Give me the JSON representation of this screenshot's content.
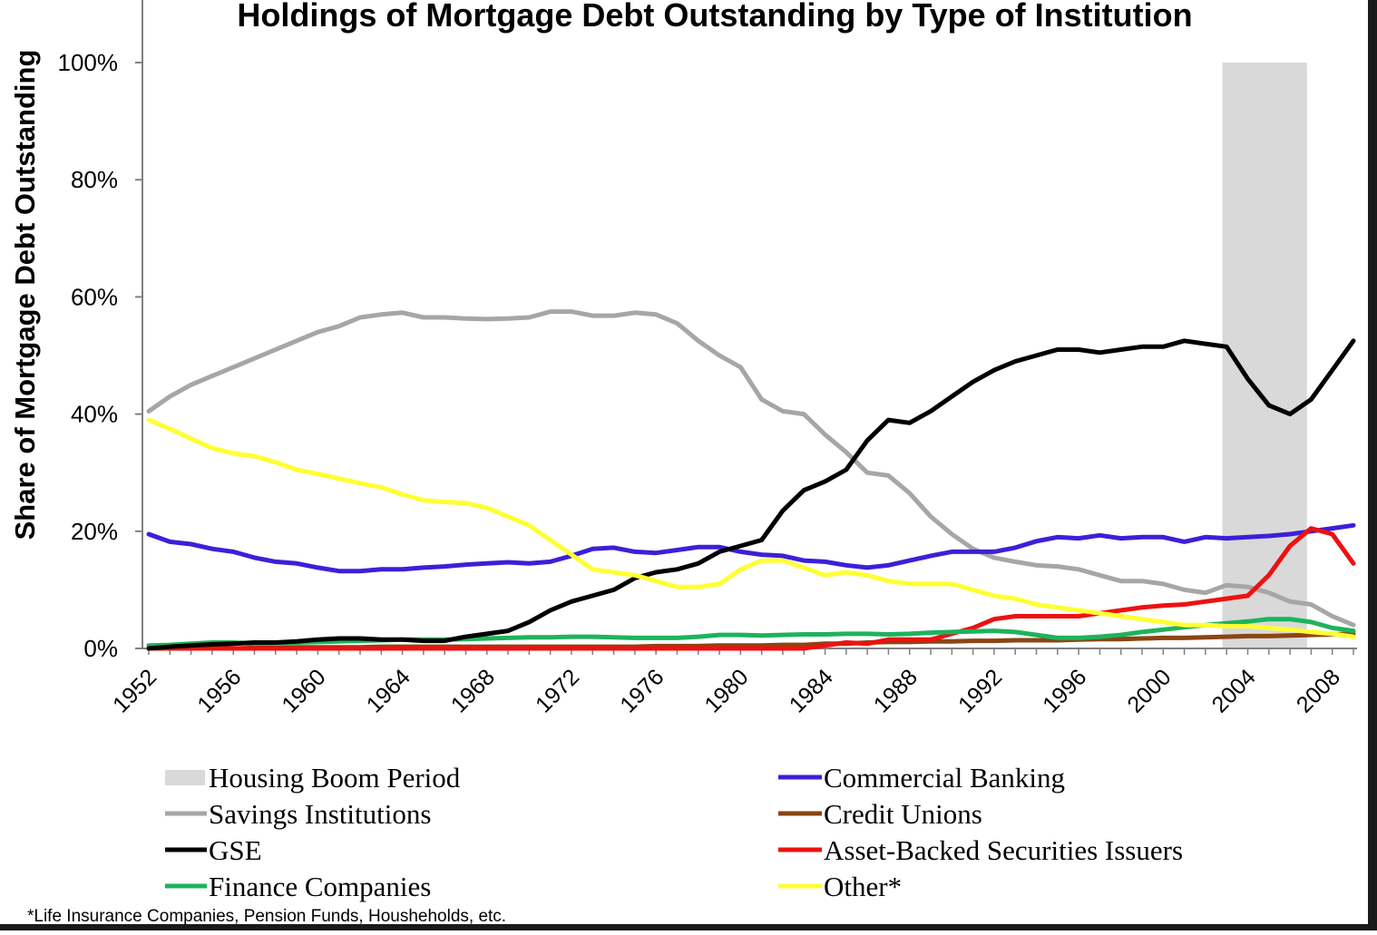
{
  "chart_data": {
    "type": "line",
    "title": "Holdings of Mortgage Debt Outstanding by Type of Institution",
    "ylabel": "Share of Mortgage Debt Outstanding",
    "xlabel": "",
    "xlim": [
      1952,
      2009
    ],
    "ylim": [
      0,
      100
    ],
    "yticks": [
      {
        "value": 0,
        "label": "0%"
      },
      {
        "value": 20,
        "label": "20%"
      },
      {
        "value": 40,
        "label": "40%"
      },
      {
        "value": 60,
        "label": "60%"
      },
      {
        "value": 80,
        "label": "80%"
      },
      {
        "value": 100,
        "label": "100%"
      }
    ],
    "xticks": [
      "1952",
      "1956",
      "1960",
      "1964",
      "1968",
      "1972",
      "1976",
      "1980",
      "1984",
      "1988",
      "1992",
      "1996",
      "2000",
      "2004",
      "2008"
    ],
    "shaded_period": {
      "name": "Housing Boom Period",
      "start": 2002.8,
      "end": 2006.8,
      "color": "#d9d9d9"
    },
    "x": [
      1952,
      1953,
      1954,
      1955,
      1956,
      1957,
      1958,
      1959,
      1960,
      1961,
      1962,
      1963,
      1964,
      1965,
      1966,
      1967,
      1968,
      1969,
      1970,
      1971,
      1972,
      1973,
      1974,
      1975,
      1976,
      1977,
      1978,
      1979,
      1980,
      1981,
      1982,
      1983,
      1984,
      1985,
      1986,
      1987,
      1988,
      1989,
      1990,
      1991,
      1992,
      1993,
      1994,
      1995,
      1996,
      1997,
      1998,
      1999,
      2000,
      2001,
      2002,
      2003,
      2004,
      2005,
      2006,
      2007,
      2008,
      2009
    ],
    "series": [
      {
        "name": "Savings Institutions",
        "color": "#a6a6a6",
        "values": [
          40.5,
          43.0,
          45.0,
          46.5,
          48.0,
          49.5,
          51.0,
          52.5,
          54.0,
          55.0,
          56.5,
          57.0,
          57.3,
          56.5,
          56.5,
          56.3,
          56.2,
          56.3,
          56.5,
          57.5,
          57.5,
          56.8,
          56.8,
          57.3,
          57.0,
          55.5,
          52.5,
          50.0,
          48.0,
          42.5,
          40.5,
          40.0,
          36.5,
          33.5,
          30.0,
          29.5,
          26.5,
          22.5,
          19.5,
          17.0,
          15.5,
          14.8,
          14.2,
          14.0,
          13.5,
          12.5,
          11.5,
          11.5,
          11.0,
          10.0,
          9.5,
          10.8,
          10.5,
          9.5,
          8.0,
          7.5,
          5.5,
          4.0
        ]
      },
      {
        "name": "Commercial Banking",
        "color": "#3c20d8",
        "values": [
          19.5,
          18.2,
          17.8,
          17.0,
          16.5,
          15.5,
          14.8,
          14.5,
          13.8,
          13.2,
          13.2,
          13.5,
          13.5,
          13.8,
          14.0,
          14.3,
          14.5,
          14.7,
          14.5,
          14.8,
          15.8,
          17.0,
          17.2,
          16.5,
          16.3,
          16.8,
          17.3,
          17.3,
          16.5,
          16.0,
          15.8,
          15.0,
          14.8,
          14.2,
          13.8,
          14.2,
          15.0,
          15.8,
          16.5,
          16.5,
          16.5,
          17.2,
          18.3,
          19.0,
          18.8,
          19.3,
          18.8,
          19.0,
          19.0,
          18.2,
          19.0,
          18.8,
          19.0,
          19.2,
          19.5,
          20.0,
          20.5,
          21.0
        ]
      },
      {
        "name": "Credit Unions",
        "color": "#8b4513",
        "values": [
          0.0,
          0.0,
          0.0,
          0.0,
          0.0,
          0.1,
          0.1,
          0.2,
          0.2,
          0.2,
          0.2,
          0.3,
          0.3,
          0.3,
          0.3,
          0.3,
          0.3,
          0.3,
          0.3,
          0.3,
          0.3,
          0.3,
          0.3,
          0.3,
          0.4,
          0.4,
          0.4,
          0.5,
          0.5,
          0.5,
          0.6,
          0.6,
          0.8,
          0.8,
          1.0,
          1.1,
          1.1,
          1.2,
          1.2,
          1.3,
          1.3,
          1.4,
          1.4,
          1.4,
          1.5,
          1.6,
          1.6,
          1.7,
          1.8,
          1.8,
          1.9,
          2.0,
          2.1,
          2.1,
          2.2,
          2.3,
          2.4,
          2.5
        ]
      },
      {
        "name": "Asset-Backed Securities Issuers",
        "color": "#ee1111",
        "values": [
          0.0,
          0.0,
          0.0,
          0.0,
          0.0,
          0.0,
          0.0,
          0.0,
          0.0,
          0.0,
          0.0,
          0.0,
          0.0,
          0.0,
          0.0,
          0.0,
          0.0,
          0.0,
          0.0,
          0.0,
          0.0,
          0.0,
          0.0,
          0.0,
          0.0,
          0.0,
          0.0,
          0.0,
          0.0,
          0.0,
          0.0,
          0.0,
          0.5,
          1.0,
          0.8,
          1.5,
          1.5,
          1.5,
          2.5,
          3.5,
          5.0,
          5.5,
          5.5,
          5.5,
          5.5,
          6.0,
          6.5,
          7.0,
          7.3,
          7.5,
          8.0,
          8.5,
          9.0,
          12.5,
          17.5,
          20.5,
          19.5,
          14.5
        ]
      },
      {
        "name": "Finance Companies",
        "color": "#1db35c",
        "values": [
          0.5,
          0.6,
          0.8,
          1.0,
          1.0,
          0.8,
          0.9,
          1.0,
          1.1,
          1.2,
          1.3,
          1.4,
          1.5,
          1.5,
          1.5,
          1.6,
          1.7,
          1.8,
          1.9,
          1.9,
          2.0,
          2.0,
          1.9,
          1.8,
          1.8,
          1.8,
          2.0,
          2.3,
          2.3,
          2.2,
          2.3,
          2.4,
          2.4,
          2.5,
          2.5,
          2.4,
          2.5,
          2.7,
          2.8,
          2.9,
          3.0,
          2.8,
          2.3,
          1.8,
          1.8,
          2.0,
          2.3,
          2.8,
          3.2,
          3.6,
          4.0,
          4.3,
          4.6,
          5.0,
          5.0,
          4.5,
          3.5,
          3.0
        ]
      },
      {
        "name": "GSE",
        "color": "#000000",
        "values": [
          0.0,
          0.3,
          0.5,
          0.7,
          0.8,
          1.0,
          1.0,
          1.2,
          1.5,
          1.7,
          1.7,
          1.5,
          1.5,
          1.3,
          1.3,
          2.0,
          2.5,
          3.0,
          4.5,
          6.5,
          8.0,
          9.0,
          10.0,
          12.0,
          13.0,
          13.5,
          14.5,
          16.5,
          17.5,
          18.5,
          23.5,
          27.0,
          28.5,
          30.5,
          35.5,
          39.0,
          38.5,
          40.5,
          43.0,
          45.5,
          47.5,
          49.0,
          50.0,
          51.0,
          51.0,
          50.5,
          51.0,
          51.5,
          51.5,
          52.5,
          52.0,
          51.5,
          46.0,
          41.5,
          40.0,
          42.5,
          47.5,
          52.5
        ]
      },
      {
        "name": "Other*",
        "color": "#ffff33",
        "values": [
          39.0,
          37.5,
          35.8,
          34.2,
          33.3,
          32.8,
          31.8,
          30.5,
          29.8,
          29.0,
          28.2,
          27.5,
          26.3,
          25.3,
          25.0,
          24.8,
          24.0,
          22.5,
          21.0,
          18.5,
          16.0,
          13.5,
          13.0,
          12.5,
          11.5,
          10.5,
          10.5,
          11.0,
          13.5,
          15.0,
          15.0,
          13.8,
          12.5,
          13.0,
          12.5,
          11.5,
          11.0,
          11.0,
          11.0,
          10.0,
          9.0,
          8.5,
          7.5,
          7.0,
          6.5,
          6.0,
          5.5,
          5.0,
          4.5,
          4.0,
          4.0,
          3.8,
          3.8,
          3.5,
          3.2,
          2.8,
          2.5,
          2.0
        ]
      }
    ],
    "legend": {
      "placement": "bottom",
      "entries": [
        {
          "name": "Housing Boom Period",
          "kind": "area",
          "color": "#d9d9d9"
        },
        {
          "name": "Commercial Banking",
          "kind": "line",
          "color": "#3c20d8"
        },
        {
          "name": "Savings Institutions",
          "kind": "line",
          "color": "#a6a6a6"
        },
        {
          "name": "Credit Unions",
          "kind": "line",
          "color": "#8b4513"
        },
        {
          "name": "GSE",
          "kind": "line",
          "color": "#000000"
        },
        {
          "name": "Asset-Backed Securities Issuers",
          "kind": "line",
          "color": "#ee1111"
        },
        {
          "name": "Finance Companies",
          "kind": "line",
          "color": "#1db35c"
        },
        {
          "name": "Other*",
          "kind": "line",
          "color": "#ffff33"
        }
      ]
    },
    "footnote": "*Life Insurance Companies, Pension Funds, Housheholds, etc."
  }
}
